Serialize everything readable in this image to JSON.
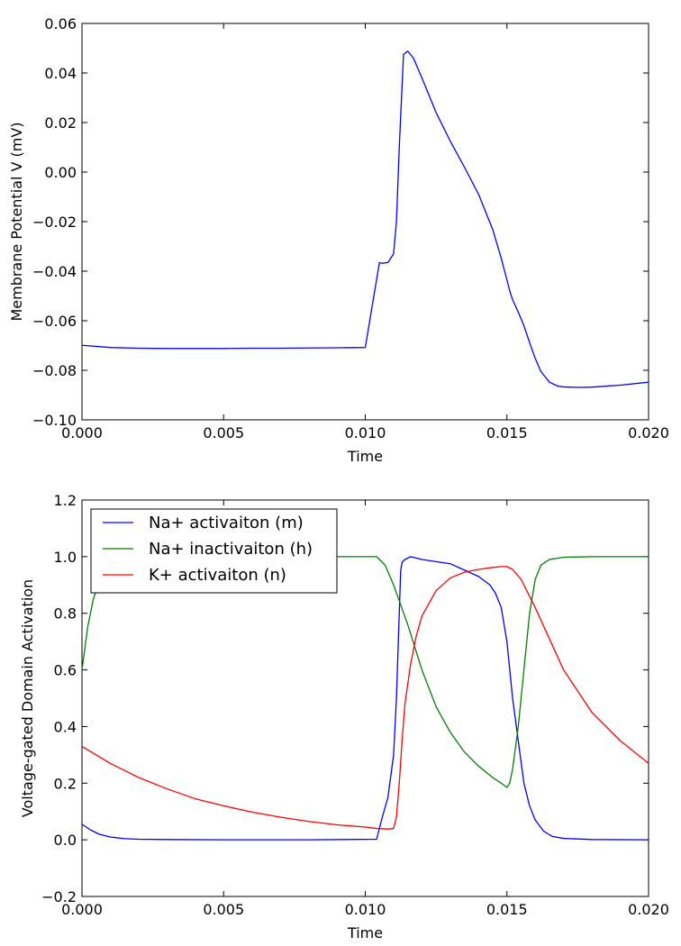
{
  "chart_data": [
    {
      "type": "line",
      "title": "",
      "xlabel": "Time",
      "ylabel": "Membrane Potential V (mV)",
      "xlim": [
        0.0,
        0.02
      ],
      "ylim": [
        -0.1,
        0.06
      ],
      "x_ticks": [
        "0.000",
        "0.005",
        "0.010",
        "0.015",
        "0.020"
      ],
      "y_ticks": [
        "−0.10",
        "−0.08",
        "−0.06",
        "−0.04",
        "−0.02",
        "0.00",
        "0.02",
        "0.04",
        "0.06"
      ],
      "grid": false,
      "series": [
        {
          "color": "#0000ff",
          "x": [
            0.0,
            0.001,
            0.002,
            0.003,
            0.004,
            0.005,
            0.006,
            0.007,
            0.008,
            0.009,
            0.01,
            0.0105,
            0.0106,
            0.0108,
            0.011,
            0.0111,
            0.0112,
            0.01135,
            0.0115,
            0.0117,
            0.012,
            0.0125,
            0.013,
            0.0135,
            0.014,
            0.0145,
            0.0148,
            0.015,
            0.0151,
            0.0152,
            0.0154,
            0.0156,
            0.0158,
            0.016,
            0.0162,
            0.0165,
            0.0168,
            0.017,
            0.0175,
            0.018,
            0.019,
            0.02
          ],
          "y": [
            -0.0699,
            -0.0708,
            -0.0711,
            -0.0712,
            -0.0712,
            -0.0712,
            -0.0711,
            -0.0711,
            -0.071,
            -0.0709,
            -0.0708,
            -0.0365,
            -0.0368,
            -0.0365,
            -0.033,
            -0.02,
            0.01,
            0.0475,
            0.0488,
            0.046,
            0.038,
            0.024,
            0.0125,
            0.002,
            -0.009,
            -0.0232,
            -0.0348,
            -0.0435,
            -0.048,
            -0.0515,
            -0.0565,
            -0.062,
            -0.0688,
            -0.0752,
            -0.0805,
            -0.0848,
            -0.0864,
            -0.0867,
            -0.0869,
            -0.0868,
            -0.086,
            -0.0848
          ]
        }
      ]
    },
    {
      "type": "line",
      "title": "",
      "xlabel": "Time",
      "ylabel": "Voltage-gated Domain Activation",
      "xlim": [
        0.0,
        0.02
      ],
      "ylim": [
        -0.2,
        1.2
      ],
      "x_ticks": [
        "0.000",
        "0.005",
        "0.010",
        "0.015",
        "0.020"
      ],
      "y_ticks": [
        "−0.2",
        "0.0",
        "0.2",
        "0.4",
        "0.6",
        "0.8",
        "1.0",
        "1.2"
      ],
      "grid": false,
      "legend_position": "top-left",
      "series": [
        {
          "name": "Na+ activaiton (m)",
          "color": "#0000ff",
          "x": [
            0.0,
            0.0003,
            0.0006,
            0.001,
            0.0015,
            0.002,
            0.003,
            0.005,
            0.008,
            0.0104,
            0.0106,
            0.0108,
            0.011,
            0.0111,
            0.0112,
            0.01125,
            0.0113,
            0.0114,
            0.0116,
            0.012,
            0.013,
            0.014,
            0.0144,
            0.0146,
            0.0148,
            0.015,
            0.0152,
            0.0154,
            0.0156,
            0.0158,
            0.016,
            0.0163,
            0.0166,
            0.017,
            0.018,
            0.02
          ],
          "y": [
            0.055,
            0.035,
            0.02,
            0.01,
            0.004,
            0.002,
            0.001,
            0.0,
            0.0,
            0.002,
            0.08,
            0.15,
            0.3,
            0.5,
            0.8,
            0.95,
            0.98,
            0.99,
            1.0,
            0.99,
            0.975,
            0.93,
            0.9,
            0.87,
            0.82,
            0.7,
            0.5,
            0.35,
            0.2,
            0.12,
            0.07,
            0.03,
            0.012,
            0.005,
            0.001,
            0.0
          ]
        },
        {
          "name": "Na+ inactivaiton (h)",
          "color": "#008000",
          "x": [
            0.0,
            0.0002,
            0.0004,
            0.0006,
            0.0008,
            0.001,
            0.0013,
            0.0016,
            0.002,
            0.003,
            0.005,
            0.008,
            0.0104,
            0.0107,
            0.011,
            0.0115,
            0.012,
            0.0125,
            0.013,
            0.0135,
            0.014,
            0.0145,
            0.0148,
            0.015,
            0.0151,
            0.0152,
            0.0154,
            0.0156,
            0.0158,
            0.016,
            0.0162,
            0.0165,
            0.017,
            0.018,
            0.02
          ],
          "y": [
            0.6,
            0.75,
            0.85,
            0.91,
            0.95,
            0.97,
            0.985,
            0.992,
            0.996,
            0.999,
            1.0,
            1.0,
            1.0,
            0.97,
            0.9,
            0.76,
            0.6,
            0.47,
            0.38,
            0.31,
            0.26,
            0.22,
            0.2,
            0.185,
            0.2,
            0.25,
            0.4,
            0.6,
            0.8,
            0.92,
            0.97,
            0.99,
            0.998,
            1.0,
            1.0
          ]
        },
        {
          "name": "K+ activaiton (n)",
          "color": "#ff0000",
          "x": [
            0.0,
            0.001,
            0.002,
            0.003,
            0.004,
            0.005,
            0.006,
            0.007,
            0.008,
            0.009,
            0.01,
            0.0104,
            0.0108,
            0.011,
            0.0111,
            0.0112,
            0.0113,
            0.0114,
            0.0116,
            0.0118,
            0.012,
            0.0125,
            0.013,
            0.0135,
            0.014,
            0.0145,
            0.0148,
            0.015,
            0.0152,
            0.0155,
            0.016,
            0.017,
            0.018,
            0.019,
            0.02
          ],
          "y": [
            0.33,
            0.27,
            0.22,
            0.18,
            0.145,
            0.12,
            0.098,
            0.08,
            0.065,
            0.053,
            0.045,
            0.04,
            0.038,
            0.04,
            0.08,
            0.2,
            0.35,
            0.48,
            0.62,
            0.72,
            0.79,
            0.88,
            0.925,
            0.945,
            0.955,
            0.962,
            0.965,
            0.965,
            0.955,
            0.92,
            0.82,
            0.6,
            0.45,
            0.35,
            0.27
          ]
        }
      ]
    }
  ]
}
